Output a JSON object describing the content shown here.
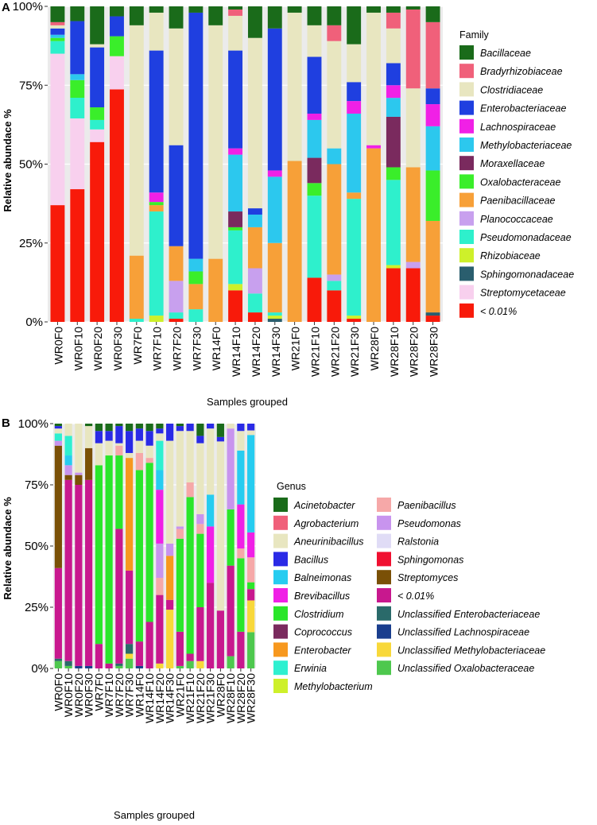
{
  "chart_data": [
    {
      "panel": "A",
      "type": "bar",
      "stacked": true,
      "ylabel": "Relative abundace %",
      "xlabel": "Samples grouped",
      "ylim": [
        0,
        100
      ],
      "yticks": [
        "0%",
        "25%",
        "50%",
        "75%",
        "100%"
      ],
      "legend_title": "Family",
      "legend_placement": "right",
      "categories": [
        "WR0F0",
        "WR0F10",
        "WR0F20",
        "WR0F30",
        "WR7F0",
        "WR7F10",
        "WR7F20",
        "WR7F30",
        "WR14F0",
        "WR14F10",
        "WR14F20",
        "WR14F30",
        "WR21F0",
        "WR21F10",
        "WR21F20",
        "WR21F30",
        "WR28F0",
        "WR28F10",
        "WR28F20",
        "WR28F30"
      ],
      "legend": [
        {
          "name": "Bacillaceae",
          "color": "#1a6b1a"
        },
        {
          "name": "Bradyrhizobiaceae",
          "color": "#f0607a"
        },
        {
          "name": "Clostridiaceae",
          "color": "#e8e6c0"
        },
        {
          "name": "Enterobacteriaceae",
          "color": "#1f3fe0"
        },
        {
          "name": "Lachnospiraceae",
          "color": "#f020e6"
        },
        {
          "name": "Methylobacteriaceae",
          "color": "#2cc8ee"
        },
        {
          "name": "Moraxellaceae",
          "color": "#7a2a5e"
        },
        {
          "name": "Oxalobacteraceae",
          "color": "#3aee2a"
        },
        {
          "name": "Paenibacillaceae",
          "color": "#f7a038"
        },
        {
          "name": "Planococcaceae",
          "color": "#c8a0ee"
        },
        {
          "name": "Pseudomonadaceae",
          "color": "#2ef0cc"
        },
        {
          "name": "Rhizobiaceae",
          "color": "#cef02a"
        },
        {
          "name": "Sphingomonadaceae",
          "color": "#2a5e6e"
        },
        {
          "name": "Streptomycetaceae",
          "color": "#f8d0ee"
        },
        {
          "name": "< 0.01%",
          "color": "#f81a0a"
        }
      ],
      "series": [
        {
          "name": "< 0.01%",
          "values": [
            37,
            45,
            57,
            70,
            0,
            0,
            1,
            0,
            0,
            10,
            3,
            0,
            0,
            14,
            10,
            1,
            0,
            17,
            17,
            2
          ]
        },
        {
          "name": "Sphingomonadaceae",
          "values": [
            0,
            0,
            0,
            0,
            0,
            0,
            0,
            0,
            0,
            0,
            0,
            1,
            0,
            0,
            0,
            0,
            0,
            0,
            0,
            1
          ]
        },
        {
          "name": "Rhizobiaceae",
          "values": [
            0,
            0,
            0,
            0,
            0,
            2,
            0,
            0,
            0,
            2,
            0,
            1,
            0,
            0,
            0,
            1,
            0,
            1,
            0,
            0
          ]
        },
        {
          "name": "Streptomycetaceae",
          "values": [
            48,
            24,
            4,
            10,
            0,
            0,
            0,
            0,
            0,
            0,
            0,
            0,
            0,
            0,
            0,
            0,
            0,
            0,
            0,
            0
          ]
        },
        {
          "name": "Pseudomonadaceae",
          "values": [
            4,
            7,
            3,
            0,
            1,
            33,
            2,
            4,
            0,
            17,
            6,
            1,
            0,
            26,
            3,
            37,
            0,
            27,
            0,
            0
          ]
        },
        {
          "name": "Planococcaceae",
          "values": [
            0,
            0,
            0,
            0,
            0,
            0,
            10,
            0,
            0,
            0,
            8,
            0,
            0,
            0,
            2,
            0,
            0,
            0,
            2,
            0
          ]
        },
        {
          "name": "Paenibacillaceae",
          "values": [
            0,
            0,
            0,
            0,
            20,
            2,
            11,
            8,
            20,
            0,
            13,
            22,
            51,
            0,
            35,
            2,
            55,
            0,
            30,
            29
          ]
        },
        {
          "name": "Oxalobacteraceae",
          "values": [
            1,
            6,
            4,
            6,
            0,
            1,
            0,
            4,
            0,
            1,
            0,
            0,
            0,
            4,
            0,
            0,
            0,
            4,
            0,
            16
          ]
        },
        {
          "name": "Moraxellaceae",
          "values": [
            0,
            0,
            0,
            0,
            0,
            0,
            0,
            0,
            0,
            5,
            0,
            0,
            0,
            8,
            0,
            0,
            0,
            16,
            0,
            0
          ]
        },
        {
          "name": "Methylobacteriaceae",
          "values": [
            1,
            2,
            0,
            0,
            0,
            0,
            0,
            4,
            0,
            18,
            4,
            21,
            0,
            12,
            5,
            25,
            0,
            6,
            0,
            14
          ]
        },
        {
          "name": "Lachnospiraceae",
          "values": [
            0,
            0,
            0,
            0,
            0,
            3,
            0,
            0,
            0,
            2,
            0,
            2,
            0,
            2,
            0,
            4,
            1,
            4,
            0,
            7
          ]
        },
        {
          "name": "Enterobacteriaceae",
          "values": [
            2,
            18,
            19,
            6,
            0,
            45,
            32,
            78,
            0,
            31,
            2,
            45,
            0,
            18,
            0,
            6,
            0,
            7,
            0,
            5
          ]
        },
        {
          "name": "Clostridiaceae",
          "values": [
            1,
            0,
            1,
            0,
            73,
            12,
            37,
            0,
            74,
            11,
            54,
            0,
            47,
            10,
            34,
            12,
            42,
            11,
            25,
            0
          ]
        },
        {
          "name": "Bradyrhizobiaceae",
          "values": [
            1,
            0,
            0,
            0,
            0,
            0,
            0,
            0,
            0,
            2,
            0,
            0,
            0,
            0,
            5,
            0,
            0,
            5,
            25,
            21
          ]
        },
        {
          "name": "Bacillaceae",
          "values": [
            5,
            5,
            12,
            3,
            6,
            2,
            7,
            2,
            6,
            1,
            10,
            7,
            2,
            6,
            6,
            12,
            2,
            2,
            1,
            5
          ]
        }
      ]
    },
    {
      "panel": "B",
      "type": "bar",
      "stacked": true,
      "ylabel": "Relative abundace %",
      "xlabel": "Samples grouped",
      "ylim": [
        0,
        100
      ],
      "yticks": [
        "0%",
        "25%",
        "50%",
        "75%",
        "100%"
      ],
      "legend_title": "Genus",
      "legend_placement": "right",
      "categories": [
        "WR0F0",
        "WR0F10",
        "WR0F20",
        "WR0F30",
        "WR7F0",
        "WR7F10",
        "WR7F20",
        "WR7F30",
        "WR14F0",
        "WR14F10",
        "WR14F20",
        "WR14F30",
        "WR21F0",
        "WR21F10",
        "WR21F20",
        "WR21F30",
        "WR28F0",
        "WR28F10",
        "WR28F20",
        "WR28F30"
      ],
      "legend": [
        {
          "name": "Acinetobacter",
          "color": "#1a6b1a"
        },
        {
          "name": "Agrobacterium",
          "color": "#f0607a"
        },
        {
          "name": "Aneurinibacillus",
          "color": "#e8e6c0"
        },
        {
          "name": "Bacillus",
          "color": "#2a2ae6"
        },
        {
          "name": "Balneimonas",
          "color": "#26ccf0"
        },
        {
          "name": "Brevibacillus",
          "color": "#f020e6"
        },
        {
          "name": "Clostridium",
          "color": "#2ae62a"
        },
        {
          "name": "Coprococcus",
          "color": "#7a2a5e"
        },
        {
          "name": "Enterobacter",
          "color": "#f7981e"
        },
        {
          "name": "Erwinia",
          "color": "#2ef0d0"
        },
        {
          "name": "Methylobacterium",
          "color": "#cef02a"
        },
        {
          "name": "Paenibacillus",
          "color": "#f6a8a8"
        },
        {
          "name": "Pseudomonas",
          "color": "#c894ee"
        },
        {
          "name": "Ralstonia",
          "color": "#e0dcf6"
        },
        {
          "name": "Sphingomonas",
          "color": "#f01030"
        },
        {
          "name": "Streptomyces",
          "color": "#7a5006"
        },
        {
          "name": "< 0.01%",
          "color": "#c8188e"
        },
        {
          "name": "Unclassified  Enterobacteriaceae",
          "color": "#2a6a6a"
        },
        {
          "name": "Unclassified  Lachnospiraceae",
          "color": "#1a3e8e"
        },
        {
          "name": "Unclassified  Methylobacteriaceae",
          "color": "#f8d83a"
        },
        {
          "name": "Unclassified  Oxalobacteraceae",
          "color": "#4ec84e"
        }
      ],
      "series": [
        {
          "name": "Unclassified  Oxalobacteraceae",
          "values": [
            3,
            1,
            0,
            0,
            0,
            0,
            1,
            4,
            0,
            0,
            0,
            0,
            1,
            3,
            0,
            0,
            0,
            5,
            0,
            16
          ]
        },
        {
          "name": "Unclassified  Lachnospiraceae",
          "values": [
            0,
            0,
            1,
            1,
            0,
            0,
            0,
            0,
            1,
            0,
            0,
            0,
            0,
            0,
            0,
            0,
            0,
            0,
            0,
            0
          ]
        },
        {
          "name": "Unclassified  Methylobacteriaceae",
          "values": [
            0,
            0,
            0,
            0,
            0,
            0,
            0,
            2,
            0,
            0,
            2,
            24,
            0,
            0,
            3,
            0,
            0,
            0,
            0,
            14
          ]
        },
        {
          "name": "Unclassified  Enterobacteriaceae",
          "values": [
            1,
            2,
            0,
            0,
            0,
            0,
            1,
            4,
            0,
            0,
            0,
            0,
            0,
            0,
            0,
            0,
            0,
            0,
            0,
            0
          ]
        },
        {
          "name": "< 0.01%",
          "values": [
            37,
            74,
            74,
            76,
            10,
            2,
            55,
            30,
            10,
            19,
            28,
            4,
            14,
            3,
            22,
            35,
            13,
            37,
            15,
            5
          ]
        },
        {
          "name": "Streptomyces",
          "values": [
            50,
            2,
            4,
            13,
            0,
            0,
            0,
            0,
            0,
            0,
            0,
            0,
            0,
            0,
            0,
            0,
            0,
            0,
            0,
            0
          ]
        },
        {
          "name": "Enterobacter",
          "values": [
            0,
            0,
            0,
            0,
            0,
            0,
            0,
            46,
            0,
            0,
            0,
            18,
            0,
            0,
            0,
            0,
            0,
            0,
            0,
            0
          ]
        },
        {
          "name": "Clostridium",
          "values": [
            0,
            0,
            0,
            0,
            73,
            85,
            30,
            0,
            70,
            65,
            0,
            0,
            38,
            64,
            30,
            0,
            0,
            23,
            30,
            3
          ]
        },
        {
          "name": "Paenibacillus",
          "values": [
            0,
            0,
            0,
            0,
            0,
            0,
            4,
            0,
            7,
            2,
            7,
            0,
            4,
            6,
            4,
            0,
            0,
            0,
            4,
            11
          ]
        },
        {
          "name": "Pseudomonas",
          "values": [
            2,
            4,
            1,
            0,
            0,
            0,
            0,
            0,
            0,
            0,
            14,
            5,
            1,
            0,
            4,
            0,
            0,
            33,
            0,
            0
          ]
        },
        {
          "name": "Brevibacillus",
          "values": [
            0,
            0,
            0,
            0,
            0,
            0,
            0,
            0,
            0,
            0,
            22,
            0,
            0,
            0,
            0,
            23,
            0,
            0,
            18,
            11
          ]
        },
        {
          "name": "Balneimonas",
          "values": [
            0,
            4,
            0,
            0,
            0,
            0,
            0,
            0,
            0,
            0,
            8,
            0,
            0,
            0,
            0,
            13,
            0,
            0,
            22,
            43
          ]
        },
        {
          "name": "Erwinia",
          "values": [
            3,
            8,
            0,
            0,
            0,
            0,
            0,
            0,
            0,
            0,
            12,
            0,
            0,
            0,
            0,
            0,
            0,
            0,
            0,
            0
          ]
        },
        {
          "name": "Aneurinibacillus",
          "values": [
            2,
            5,
            20,
            9,
            9,
            6,
            1,
            2,
            5,
            5,
            3,
            42,
            39,
            21,
            29,
            27,
            38,
            2,
            8,
            2
          ]
        },
        {
          "name": "Bacillus",
          "values": [
            1,
            0,
            0,
            0,
            5,
            4,
            7,
            9,
            5,
            6,
            2,
            7,
            2,
            3,
            3,
            2,
            1,
            0,
            3,
            3
          ]
        },
        {
          "name": "Acinetobacter",
          "values": [
            1,
            0,
            0,
            1,
            3,
            3,
            1,
            3,
            2,
            3,
            2,
            0,
            1,
            0,
            5,
            0,
            3,
            0,
            0,
            0
          ]
        }
      ]
    }
  ]
}
